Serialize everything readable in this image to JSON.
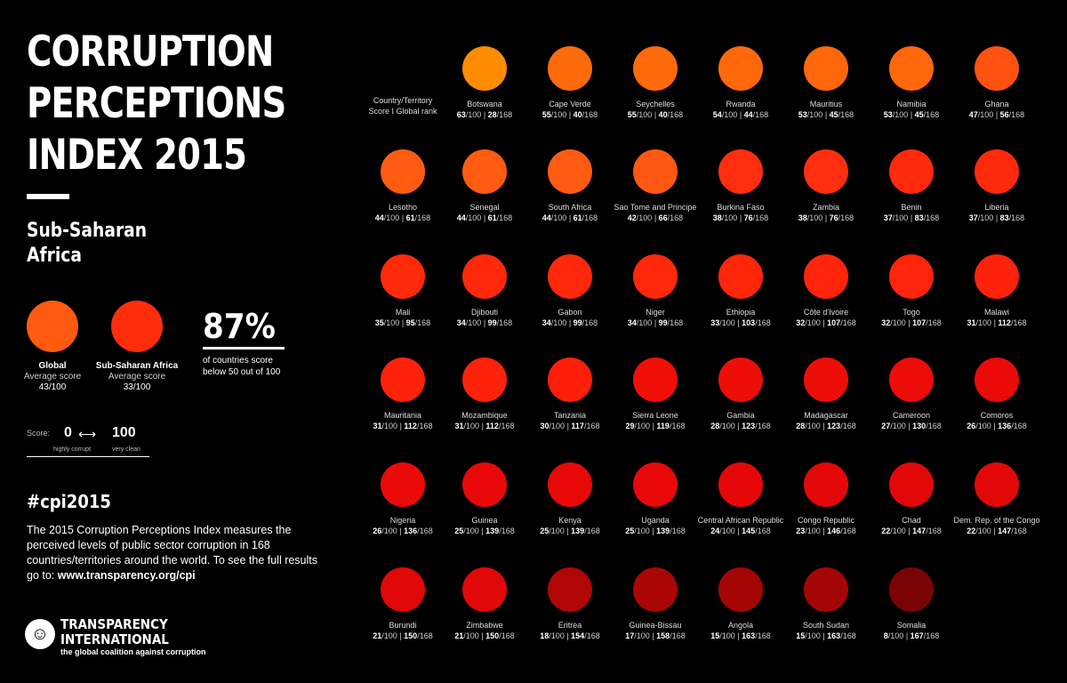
{
  "title_lines": [
    "CORRUPTION",
    "PERCEPTIONS",
    "INDEX 2015"
  ],
  "region_lines": [
    "Sub-Saharan",
    "Africa"
  ],
  "global": {
    "label": "Global",
    "sub": "Average score",
    "score": "43/100",
    "color": "#ff5a10"
  },
  "regional": {
    "label": "Sub-Saharan Africa",
    "sub": "Average score",
    "score": "33/100",
    "color": "#ff2d0a"
  },
  "percent": {
    "value": "87%",
    "line1": "of countries score",
    "line2": "below 50 out of 100"
  },
  "scale": {
    "label": "Score:",
    "min": "0",
    "arrow": "⟷",
    "max": "100",
    "min_desc": "highly corrupt",
    "max_desc": "very clean"
  },
  "hashtag": "#cpi2015",
  "description": "The 2015 Corruption Perceptions Index measures the perceived levels of public sector corruption in 168 countries/territories around the world. To see the full results go to: ",
  "url": "www.transparency.org/cpi",
  "logo": {
    "line1": "TRANSPARENCY",
    "line2": "INTERNATIONAL",
    "tagline": "the global coalition against corruption"
  },
  "header": {
    "line1": "Country/Territory",
    "line2": "Score I Global rank"
  },
  "chart_data": {
    "type": "table",
    "title": "CORRUPTION PERCEPTIONS INDEX 2015 — Sub-Saharan Africa",
    "score_max": 100,
    "total_countries": 168,
    "countries": [
      {
        "name": "Botswana",
        "score": 63,
        "rank": 28,
        "color": "#ff8c00"
      },
      {
        "name": "Cape Verde",
        "score": 55,
        "rank": 40,
        "color": "#ff6a0a"
      },
      {
        "name": "Seychelles",
        "score": 55,
        "rank": 40,
        "color": "#ff6a0a"
      },
      {
        "name": "Rwanda",
        "score": 54,
        "rank": 44,
        "color": "#ff690a"
      },
      {
        "name": "Mauritius",
        "score": 53,
        "rank": 45,
        "color": "#ff670a"
      },
      {
        "name": "Namibia",
        "score": 53,
        "rank": 45,
        "color": "#ff670a"
      },
      {
        "name": "Ghana",
        "score": 47,
        "rank": 56,
        "color": "#ff5210"
      },
      {
        "name": "Lesotho",
        "score": 44,
        "rank": 61,
        "color": "#ff5c12"
      },
      {
        "name": "Senegal",
        "score": 44,
        "rank": 61,
        "color": "#ff5c12"
      },
      {
        "name": "South Africa",
        "score": 44,
        "rank": 61,
        "color": "#ff5c12"
      },
      {
        "name": "Sao Tome and Principe",
        "score": 42,
        "rank": 66,
        "color": "#ff5812"
      },
      {
        "name": "Burkina Faso",
        "score": 38,
        "rank": 76,
        "color": "#ff2e0e"
      },
      {
        "name": "Zambia",
        "score": 38,
        "rank": 76,
        "color": "#ff2e0e"
      },
      {
        "name": "Benin",
        "score": 37,
        "rank": 83,
        "color": "#ff2a0c"
      },
      {
        "name": "Liberia",
        "score": 37,
        "rank": 83,
        "color": "#ff2a0c"
      },
      {
        "name": "Mali",
        "score": 35,
        "rank": 95,
        "color": "#ff2a0a"
      },
      {
        "name": "Djibouti",
        "score": 34,
        "rank": 99,
        "color": "#ff280a"
      },
      {
        "name": "Gabon",
        "score": 34,
        "rank": 99,
        "color": "#ff280a"
      },
      {
        "name": "Niger",
        "score": 34,
        "rank": 99,
        "color": "#ff280a"
      },
      {
        "name": "Ethiopia",
        "score": 33,
        "rank": 103,
        "color": "#ff260a"
      },
      {
        "name": "Côte d'Ivoire",
        "score": 32,
        "rank": 107,
        "color": "#ff240a"
      },
      {
        "name": "Togo",
        "score": 32,
        "rank": 107,
        "color": "#ff240a"
      },
      {
        "name": "Malawi",
        "score": 31,
        "rank": 112,
        "color": "#ff220a"
      },
      {
        "name": "Mauritania",
        "score": 31,
        "rank": 112,
        "color": "#ff220a"
      },
      {
        "name": "Mozambique",
        "score": 31,
        "rank": 112,
        "color": "#ff220a"
      },
      {
        "name": "Tanzania",
        "score": 30,
        "rank": 117,
        "color": "#ff1e0a"
      },
      {
        "name": "Sierra Leone",
        "score": 29,
        "rank": 119,
        "color": "#f01008"
      },
      {
        "name": "Gambia",
        "score": 28,
        "rank": 123,
        "color": "#ee0e08"
      },
      {
        "name": "Madagascar",
        "score": 28,
        "rank": 123,
        "color": "#ee0e08"
      },
      {
        "name": "Cameroon",
        "score": 27,
        "rank": 130,
        "color": "#ec0c08"
      },
      {
        "name": "Comoros",
        "score": 26,
        "rank": 136,
        "color": "#ea0a08"
      },
      {
        "name": "Nigeria",
        "score": 26,
        "rank": 136,
        "color": "#ea0a08"
      },
      {
        "name": "Guinea",
        "score": 25,
        "rank": 139,
        "color": "#e80808"
      },
      {
        "name": "Kenya",
        "score": 25,
        "rank": 139,
        "color": "#e80808"
      },
      {
        "name": "Uganda",
        "score": 25,
        "rank": 139,
        "color": "#e80808"
      },
      {
        "name": "Central African Republic",
        "score": 24,
        "rank": 145,
        "color": "#e60808"
      },
      {
        "name": "Congo Republic",
        "score": 23,
        "rank": 146,
        "color": "#e40808"
      },
      {
        "name": "Chad",
        "score": 22,
        "rank": 147,
        "color": "#e20808"
      },
      {
        "name": "Dem. Rep. of the Congo",
        "score": 22,
        "rank": 147,
        "color": "#e20808"
      },
      {
        "name": "Burundi",
        "score": 21,
        "rank": 150,
        "color": "#e00808"
      },
      {
        "name": "Zimbabwe",
        "score": 21,
        "rank": 150,
        "color": "#e00808"
      },
      {
        "name": "Eritrea",
        "score": 18,
        "rank": 154,
        "color": "#b00606"
      },
      {
        "name": "Guinea-Bissau",
        "score": 17,
        "rank": 158,
        "color": "#aa0606"
      },
      {
        "name": "Angola",
        "score": 15,
        "rank": 163,
        "color": "#a40606"
      },
      {
        "name": "South Sudan",
        "score": 15,
        "rank": 163,
        "color": "#a40606"
      },
      {
        "name": "Somalia",
        "score": 8,
        "rank": 167,
        "color": "#7a0404"
      }
    ]
  }
}
